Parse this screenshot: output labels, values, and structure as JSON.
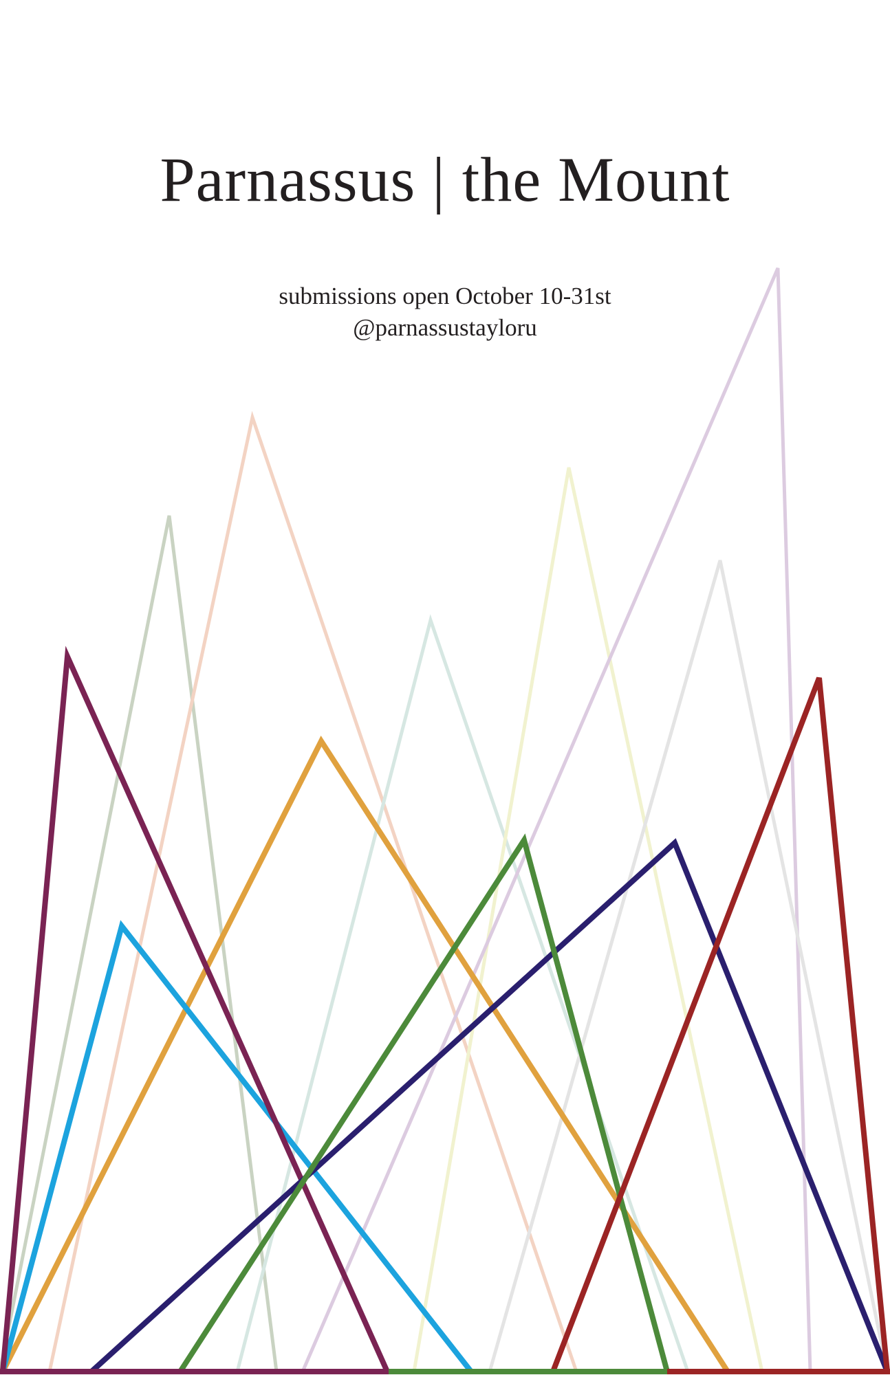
{
  "poster": {
    "title": "Parnassus | the Mount",
    "submissions_line": "submissions open October 10-31st",
    "handle": "@parnassustayloru"
  },
  "peaks": {
    "faded": [
      {
        "name": "faded-sage-peak",
        "color": "#c9d3c2"
      },
      {
        "name": "faded-peach-peak",
        "color": "#f3d3c3"
      },
      {
        "name": "faded-mint-peak",
        "color": "#d6e7e2"
      },
      {
        "name": "faded-yellow-peak",
        "color": "#f1f2cf"
      },
      {
        "name": "faded-lavender-peak",
        "color": "#dccbe0"
      },
      {
        "name": "faded-gray-peak",
        "color": "#e4e4e4"
      }
    ],
    "bold": [
      {
        "name": "orange-peak",
        "color": "#e0a13e"
      },
      {
        "name": "sky-blue-peak",
        "color": "#1ca3de"
      },
      {
        "name": "plum-peak",
        "color": "#7a2353"
      },
      {
        "name": "indigo-peak",
        "color": "#2a1f6e"
      },
      {
        "name": "green-peak",
        "color": "#4c8a3a"
      },
      {
        "name": "crimson-peak",
        "color": "#9b2424"
      }
    ]
  }
}
